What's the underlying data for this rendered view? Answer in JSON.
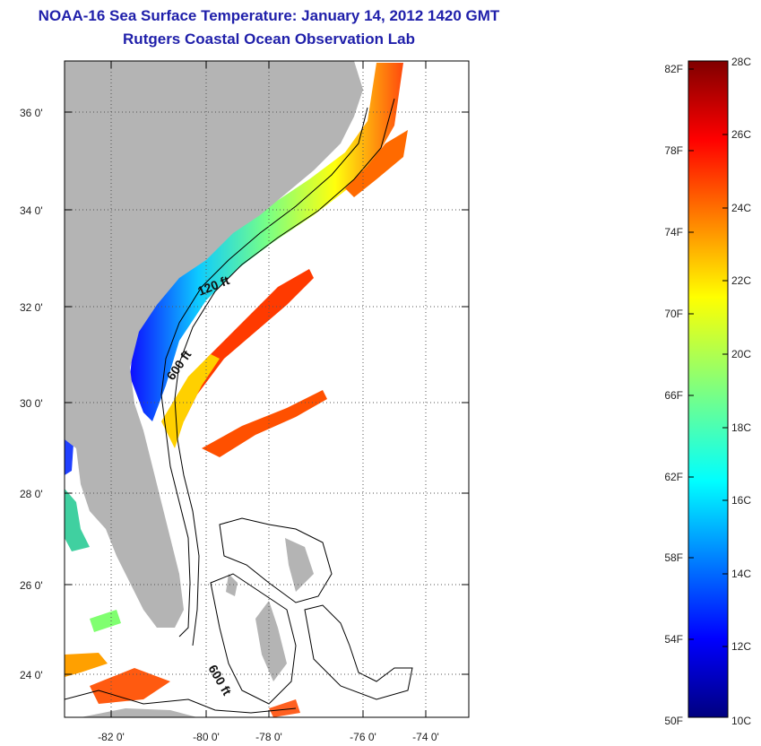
{
  "title": "NOAA-16 Sea Surface Temperature:  January 14, 2012 1420 GMT",
  "subtitle": "Rutgers Coastal Ocean Observation Lab",
  "map": {
    "lon_ticks": [
      "-82 0'",
      "-80 0'",
      "-78 0'",
      "-76 0'",
      "-74 0'"
    ],
    "lat_ticks": [
      "36 0'",
      "34 0'",
      "32 0'",
      "30 0'",
      "28 0'",
      "26 0'",
      "24 0'"
    ],
    "contour_labels": [
      "120 ft",
      "600 ft",
      "600 ft"
    ],
    "colors": {
      "land": "#b4b4b4",
      "contour": "#000000",
      "grid": "#555555"
    }
  },
  "colorbar": {
    "fahrenheit_labels": [
      "82F",
      "78F",
      "74F",
      "70F",
      "66F",
      "62F",
      "58F",
      "54F",
      "50F"
    ],
    "celsius_labels": [
      "28C",
      "26C",
      "24C",
      "22C",
      "20C",
      "18C",
      "16C",
      "14C",
      "12C",
      "10C"
    ]
  }
}
